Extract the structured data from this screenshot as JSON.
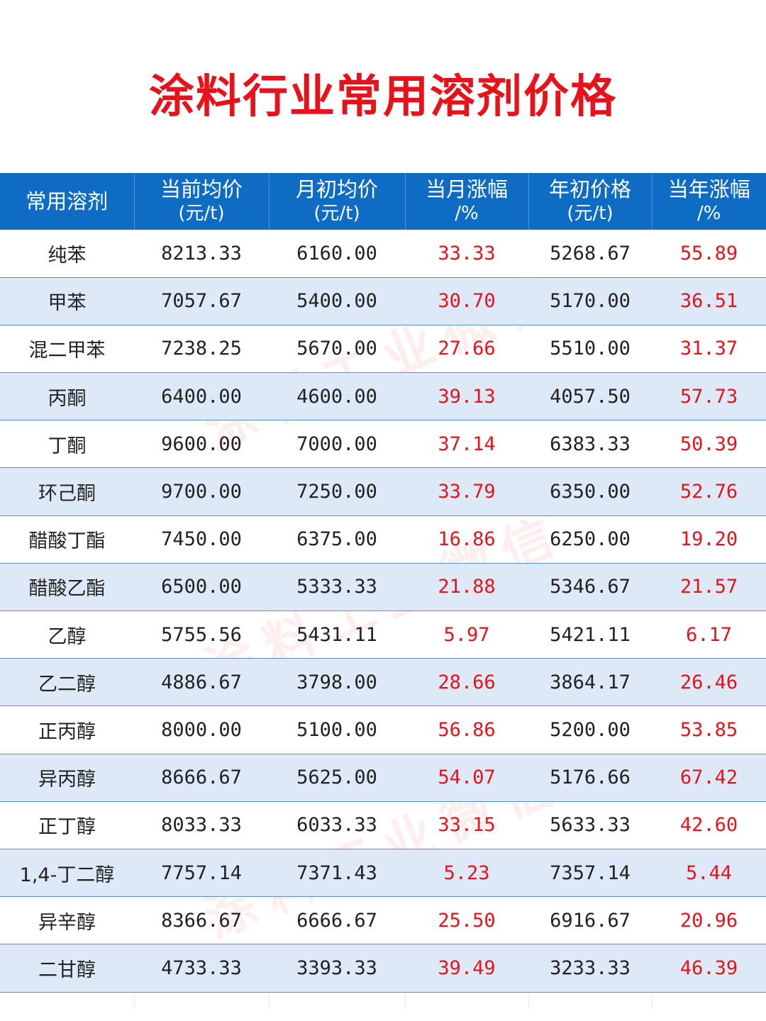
{
  "title": "涂料行业常用溶剂价格",
  "watermark": "涂料工业微信",
  "headers": [
    {
      "line1": "常用溶剂",
      "line2": ""
    },
    {
      "line1": "当前均价",
      "line2": "(元/t)"
    },
    {
      "line1": "月初均价",
      "line2": "(元/t)"
    },
    {
      "line1": "当月涨幅",
      "line2": "/%"
    },
    {
      "line1": "年初价格",
      "line2": "(元/t)"
    },
    {
      "line1": "当年涨幅",
      "line2": "/%"
    }
  ],
  "rows": [
    {
      "name": "纯苯",
      "current": "8213.33",
      "month_start": "6160.00",
      "month_change": "33.33",
      "year_start": "5268.67",
      "year_change": "55.89"
    },
    {
      "name": "甲苯",
      "current": "7057.67",
      "month_start": "5400.00",
      "month_change": "30.70",
      "year_start": "5170.00",
      "year_change": "36.51"
    },
    {
      "name": "混二甲苯",
      "current": "7238.25",
      "month_start": "5670.00",
      "month_change": "27.66",
      "year_start": "5510.00",
      "year_change": "31.37"
    },
    {
      "name": "丙酮",
      "current": "6400.00",
      "month_start": "4600.00",
      "month_change": "39.13",
      "year_start": "4057.50",
      "year_change": "57.73"
    },
    {
      "name": "丁酮",
      "current": "9600.00",
      "month_start": "7000.00",
      "month_change": "37.14",
      "year_start": "6383.33",
      "year_change": "50.39"
    },
    {
      "name": "环己酮",
      "current": "9700.00",
      "month_start": "7250.00",
      "month_change": "33.79",
      "year_start": "6350.00",
      "year_change": "52.76"
    },
    {
      "name": "醋酸丁酯",
      "current": "7450.00",
      "month_start": "6375.00",
      "month_change": "16.86",
      "year_start": "6250.00",
      "year_change": "19.20"
    },
    {
      "name": "醋酸乙酯",
      "current": "6500.00",
      "month_start": "5333.33",
      "month_change": "21.88",
      "year_start": "5346.67",
      "year_change": "21.57"
    },
    {
      "name": "乙醇",
      "current": "5755.56",
      "month_start": "5431.11",
      "month_change": "5.97",
      "year_start": "5421.11",
      "year_change": "6.17"
    },
    {
      "name": "乙二醇",
      "current": "4886.67",
      "month_start": "3798.00",
      "month_change": "28.66",
      "year_start": "3864.17",
      "year_change": "26.46"
    },
    {
      "name": "正丙醇",
      "current": "8000.00",
      "month_start": "5100.00",
      "month_change": "56.86",
      "year_start": "5200.00",
      "year_change": "53.85"
    },
    {
      "name": "异丙醇",
      "current": "8666.67",
      "month_start": "5625.00",
      "month_change": "54.07",
      "year_start": "5176.66",
      "year_change": "67.42"
    },
    {
      "name": "正丁醇",
      "current": "8033.33",
      "month_start": "6033.33",
      "month_change": "33.15",
      "year_start": "5633.33",
      "year_change": "42.60"
    },
    {
      "name": "1,4-丁二醇",
      "current": "7757.14",
      "month_start": "7371.43",
      "month_change": "5.23",
      "year_start": "7357.14",
      "year_change": "5.44"
    },
    {
      "name": "异辛醇",
      "current": "8366.67",
      "month_start": "6666.67",
      "month_change": "25.50",
      "year_start": "6916.67",
      "year_change": "20.96"
    },
    {
      "name": "二甘醇",
      "current": "4733.33",
      "month_start": "3393.33",
      "month_change": "39.49",
      "year_start": "3233.33",
      "year_change": "46.39"
    }
  ]
}
